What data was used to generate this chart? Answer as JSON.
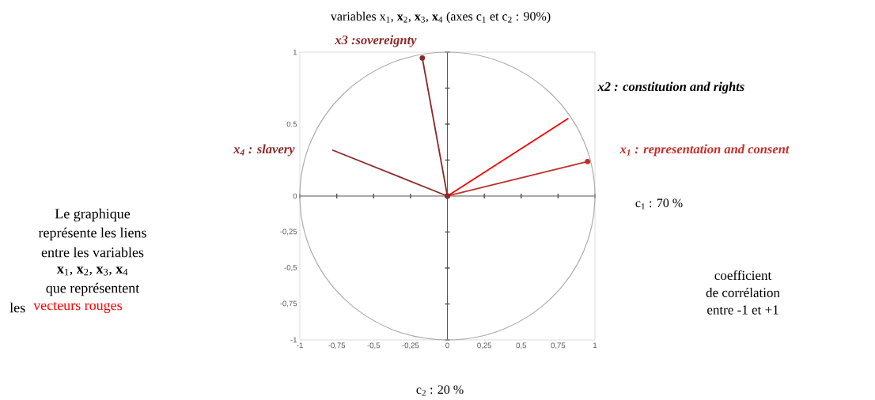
{
  "chart_data": {
    "type": "line",
    "title": "variables x$_{1}$, **x**$_{2}$, **x**$_{3}$, **x**$_{4}$ (axes c$_{1}$ et c$_{2}$ : 90%)",
    "xlim": [
      -1,
      1
    ],
    "ylim": [
      -1,
      1
    ],
    "xticks": [
      {
        "value": -1,
        "label": "-1"
      },
      {
        "value": -0.75,
        "label": "-0,75"
      },
      {
        "value": -0.5,
        "label": "-0,5"
      },
      {
        "value": -0.25,
        "label": "-0,25"
      },
      {
        "value": 0,
        "label": "0"
      },
      {
        "value": 0.25,
        "label": "0,25"
      },
      {
        "value": 0.5,
        "label": "0,5"
      },
      {
        "value": 0.75,
        "label": "0,75"
      },
      {
        "value": 1,
        "label": "1"
      }
    ],
    "yticks": [
      {
        "value": -1,
        "label": "-1"
      },
      {
        "value": -0.75,
        "label": "-0,75"
      },
      {
        "value": -0.5,
        "label": "-0,5"
      },
      {
        "value": -0.25,
        "label": "-0,25"
      },
      {
        "value": 0,
        "label": "0"
      },
      {
        "value": 0.25,
        "label": null
      },
      {
        "value": 0.5,
        "label": "0.5"
      },
      {
        "value": 0.75,
        "label": null
      },
      {
        "value": 1,
        "label": "1"
      }
    ],
    "series": [
      {
        "name": "x$_{1}$ : representation  and consent",
        "color": "#c0302a",
        "marker": "circle",
        "x": [
          0,
          0.95
        ],
        "values": [
          0,
          0.24
        ]
      },
      {
        "name": "x2 : constitution and rights",
        "color": "#ff0000",
        "x": [
          0,
          0.82
        ],
        "values": [
          0,
          0.54
        ]
      },
      {
        "name": "x3 :sovereignty",
        "color": "#8b2a2a",
        "marker": "circle",
        "x": [
          0,
          -0.17
        ],
        "values": [
          0,
          0.96
        ]
      },
      {
        "name": "x$_{4}$ : slavery",
        "color": "#8b2a2a",
        "x": [
          0,
          -0.78
        ],
        "values": [
          0,
          0.32
        ]
      }
    ],
    "annotations": [
      "c$_{1}$ : 70 %",
      "c$_{2}$ : 20 %",
      "Le graphique",
      "représente les liens",
      "entre les variables",
      "**x**$_{1}$, **x**$_{2}$, **x**$_{3}$, **x**$_{4}$",
      "que représentent",
      "les",
      "vecteurs rouges",
      "coefficient",
      "de corrélation",
      "entre -1 et +1"
    ]
  }
}
